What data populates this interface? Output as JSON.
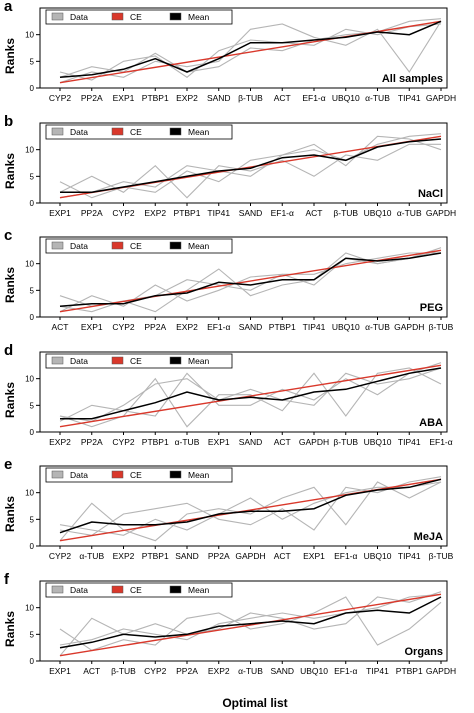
{
  "figure": {
    "x_axis_label": "Optimal list",
    "y_axis_label": "Ranks",
    "legend": {
      "data": "Data",
      "ce": "CE",
      "mean": "Mean"
    },
    "colors": {
      "data": "#b5b5b5",
      "ce": "#d9382b",
      "mean": "#000000",
      "legend_bg": "#ffffff"
    }
  },
  "chart_data": [
    {
      "type": "line",
      "panel": "a",
      "condition": "All samples",
      "categories": [
        "CYP2",
        "PP2A",
        "EXP1",
        "PTBP1",
        "EXP2",
        "SAND",
        "β-TUB",
        "ACT",
        "EF1-α",
        "UBQ10",
        "α-TUB",
        "TIP41",
        "GAPDH"
      ],
      "ylim": [
        0,
        15
      ],
      "yticks": [
        0,
        5,
        10
      ],
      "ce": [
        1,
        12.5
      ],
      "mean": [
        2,
        2.5,
        3.5,
        5.5,
        3,
        5.5,
        8.5,
        8.5,
        9,
        9.5,
        10.5,
        10,
        12.5
      ],
      "data": [
        [
          3,
          1.5,
          5,
          6,
          2,
          7,
          9,
          8.5,
          8,
          11,
          10,
          11.5,
          12
        ],
        [
          1,
          3,
          2,
          5,
          4,
          5,
          11,
          12,
          9.5,
          8,
          11,
          3,
          12.5
        ],
        [
          2,
          4,
          3,
          6.5,
          3,
          4,
          7.5,
          7,
          9,
          10,
          10.5,
          12.5,
          13
        ]
      ]
    },
    {
      "type": "line",
      "panel": "b",
      "condition": "NaCl",
      "categories": [
        "EXP1",
        "PP2A",
        "CYP2",
        "EXP2",
        "PTBP1",
        "TIP41",
        "SAND",
        "EF1-α",
        "ACT",
        "β-TUB",
        "UBQ10",
        "α-TUB",
        "GAPDH"
      ],
      "ylim": [
        0,
        15
      ],
      "yticks": [
        0,
        5,
        10
      ],
      "ce": [
        1,
        12.5
      ],
      "mean": [
        2,
        2,
        3,
        4,
        5,
        6,
        6.5,
        8.5,
        9,
        8,
        10.5,
        11.5,
        12
      ],
      "data": [
        [
          2,
          5,
          2,
          7,
          1,
          7,
          6,
          8,
          5,
          9,
          8,
          11,
          11
        ],
        [
          4,
          1,
          3,
          2,
          6,
          4,
          8,
          9,
          11,
          7,
          12.5,
          12,
          10
        ],
        [
          1,
          2,
          4,
          3,
          7,
          6,
          5,
          9,
          10,
          8,
          11,
          12.5,
          13
        ]
      ]
    },
    {
      "type": "line",
      "panel": "c",
      "condition": "PEG",
      "categories": [
        "ACT",
        "EXP1",
        "CYP2",
        "PP2A",
        "EXP2",
        "EF1-α",
        "SAND",
        "PTBP1",
        "TIP41",
        "UBQ10",
        "α-TUB",
        "GAPDH",
        "β-TUB"
      ],
      "ylim": [
        0,
        15
      ],
      "yticks": [
        0,
        5,
        10
      ],
      "ce": [
        1,
        12.5
      ],
      "mean": [
        2,
        2.5,
        2.5,
        4,
        4.5,
        6.5,
        6,
        7,
        7,
        11,
        10.5,
        11,
        12
      ],
      "data": [
        [
          4,
          2,
          3,
          1,
          5,
          9,
          4,
          6,
          7,
          12,
          10,
          11,
          12.5
        ],
        [
          1,
          4,
          2,
          6,
          3,
          5,
          7.5,
          8,
          8,
          10,
          11,
          12,
          12
        ],
        [
          2,
          1,
          3,
          4,
          7,
          6,
          5,
          8,
          6,
          11,
          10,
          11,
          13
        ]
      ]
    },
    {
      "type": "line",
      "panel": "d",
      "condition": "ABA",
      "categories": [
        "EXP2",
        "PP2A",
        "CYP2",
        "PTBP1",
        "α-TUB",
        "EXP1",
        "SAND",
        "ACT",
        "GAPDH",
        "β-TUB",
        "UBQ10",
        "TIP41",
        "EF1-α"
      ],
      "ylim": [
        0,
        15
      ],
      "yticks": [
        0,
        5,
        10
      ],
      "ce": [
        1,
        12.5
      ],
      "mean": [
        2.5,
        2.5,
        4,
        5.5,
        7.5,
        6,
        6.5,
        6,
        7.5,
        8,
        9.5,
        11,
        12
      ],
      "data": [
        [
          3,
          1,
          3,
          10,
          1,
          7,
          7,
          4,
          11,
          3,
          11,
          12,
          9
        ],
        [
          2,
          5,
          4,
          3,
          11,
          5,
          5,
          8,
          6,
          10,
          7,
          11,
          13
        ],
        [
          3,
          2,
          5,
          9,
          10,
          6,
          8,
          6,
          5,
          11,
          9,
          10,
          12
        ]
      ]
    },
    {
      "type": "line",
      "panel": "e",
      "condition": "MeJA",
      "categories": [
        "CYP2",
        "α-TUB",
        "EXP2",
        "PTBP1",
        "SAND",
        "PP2A",
        "GAPDH",
        "ACT",
        "EXP1",
        "EF1-α",
        "UBQ10",
        "TIP41",
        "β-TUB"
      ],
      "ylim": [
        0,
        15
      ],
      "yticks": [
        0,
        5,
        10
      ],
      "ce": [
        1,
        12.5
      ],
      "mean": [
        2.5,
        4.5,
        4,
        4,
        4.5,
        6,
        6.5,
        6.5,
        7,
        9.5,
        10.5,
        11,
        12.5
      ],
      "data": [
        [
          1,
          8,
          3,
          1,
          6,
          7,
          6,
          9,
          11,
          4,
          12,
          9,
          12
        ],
        [
          3,
          2,
          6,
          7,
          8,
          5,
          4,
          7,
          3,
          11,
          10,
          12,
          13
        ],
        [
          4,
          3,
          2,
          5,
          3,
          6,
          9,
          5,
          8,
          10,
          11,
          11,
          12
        ]
      ]
    },
    {
      "type": "line",
      "panel": "f",
      "condition": "Organs",
      "categories": [
        "EXP1",
        "ACT",
        "β-TUB",
        "CYP2",
        "PP2A",
        "EXP2",
        "α-TUB",
        "SAND",
        "UBQ10",
        "EF1-α",
        "TIP41",
        "PTBP1",
        "GAPDH"
      ],
      "ylim": [
        0,
        15
      ],
      "yticks": [
        0,
        5,
        10
      ],
      "ce": [
        1,
        12.5
      ],
      "mean": [
        2.5,
        3.5,
        5,
        4.5,
        5,
        6.5,
        7,
        7.5,
        7,
        9,
        9.5,
        9,
        12
      ],
      "data": [
        [
          6,
          2,
          4,
          3,
          8,
          9,
          6,
          7,
          9,
          12,
          3,
          6,
          11
        ],
        [
          1,
          8,
          5,
          7,
          5,
          6,
          9,
          8,
          6,
          7,
          12,
          11,
          13
        ],
        [
          3,
          4,
          6,
          5,
          4,
          7,
          8,
          9,
          8,
          9,
          10,
          12,
          12.5
        ]
      ]
    }
  ]
}
